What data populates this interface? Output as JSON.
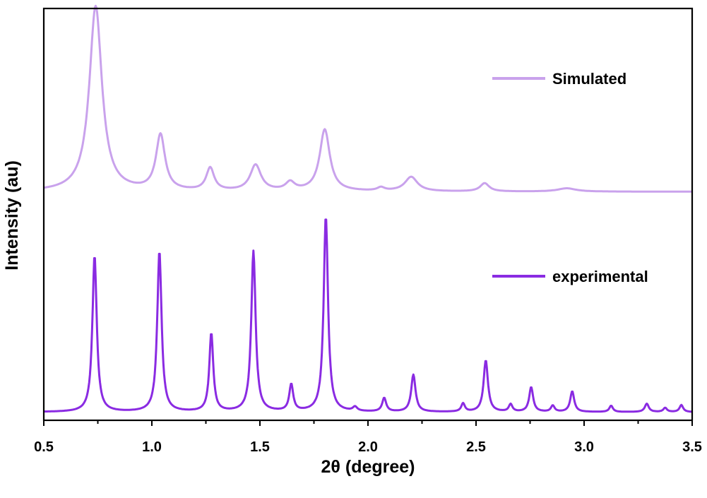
{
  "chart_data": {
    "type": "line",
    "title": "",
    "xlabel": "2θ (degree)",
    "ylabel": "Intensity (au)",
    "xlim": [
      0.5,
      3.5
    ],
    "ylim": [
      0,
      1
    ],
    "xticks": [
      "0.5",
      "1.0",
      "1.5",
      "2.0",
      "2.5",
      "3.0",
      "3.5"
    ],
    "yticks": [],
    "grid": false,
    "legend_position": "right",
    "series": [
      {
        "name": "Simulated",
        "color": "#C9A2EC",
        "baseline": 0.555,
        "peaks": [
          {
            "x": 0.74,
            "height": 0.45,
            "width": 0.035
          },
          {
            "x": 1.04,
            "height": 0.135,
            "width": 0.025
          },
          {
            "x": 1.27,
            "height": 0.055,
            "width": 0.022
          },
          {
            "x": 1.48,
            "height": 0.063,
            "width": 0.03
          },
          {
            "x": 1.64,
            "height": 0.02,
            "width": 0.025
          },
          {
            "x": 1.8,
            "height": 0.15,
            "width": 0.028
          },
          {
            "x": 2.06,
            "height": 0.008,
            "width": 0.02
          },
          {
            "x": 2.2,
            "height": 0.035,
            "width": 0.035
          },
          {
            "x": 2.54,
            "height": 0.02,
            "width": 0.025
          },
          {
            "x": 2.92,
            "height": 0.008,
            "width": 0.05
          }
        ]
      },
      {
        "name": "experimental",
        "color": "#8A2BE2",
        "baseline": 0.02,
        "peaks": [
          {
            "x": 0.735,
            "height": 0.38,
            "width": 0.012
          },
          {
            "x": 1.035,
            "height": 0.39,
            "width": 0.012
          },
          {
            "x": 1.275,
            "height": 0.19,
            "width": 0.011
          },
          {
            "x": 1.47,
            "height": 0.39,
            "width": 0.012
          },
          {
            "x": 1.645,
            "height": 0.065,
            "width": 0.011
          },
          {
            "x": 1.805,
            "height": 0.475,
            "width": 0.012
          },
          {
            "x": 1.94,
            "height": 0.01,
            "width": 0.012
          },
          {
            "x": 2.075,
            "height": 0.033,
            "width": 0.011
          },
          {
            "x": 2.21,
            "height": 0.09,
            "width": 0.012
          },
          {
            "x": 2.44,
            "height": 0.02,
            "width": 0.01
          },
          {
            "x": 2.545,
            "height": 0.125,
            "width": 0.012
          },
          {
            "x": 2.66,
            "height": 0.018,
            "width": 0.01
          },
          {
            "x": 2.755,
            "height": 0.06,
            "width": 0.011
          },
          {
            "x": 2.855,
            "height": 0.015,
            "width": 0.01
          },
          {
            "x": 2.945,
            "height": 0.05,
            "width": 0.011
          },
          {
            "x": 3.125,
            "height": 0.015,
            "width": 0.01
          },
          {
            "x": 3.29,
            "height": 0.02,
            "width": 0.011
          },
          {
            "x": 3.375,
            "height": 0.01,
            "width": 0.01
          },
          {
            "x": 3.45,
            "height": 0.017,
            "width": 0.01
          }
        ]
      }
    ]
  }
}
